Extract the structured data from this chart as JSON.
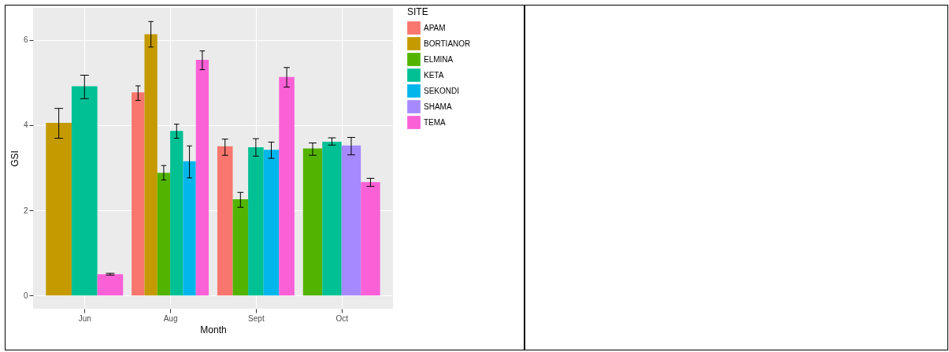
{
  "chart_data": {
    "type": "bar",
    "xlabel": "Month",
    "ylabel": "GSI",
    "legend_title": "SITE",
    "categories": [
      "Jun",
      "Aug",
      "Sept",
      "Oct"
    ],
    "series": [
      {
        "name": "APAM",
        "color": "#f8766d",
        "values": [
          null,
          4.77,
          3.5,
          null
        ],
        "errors": [
          null,
          [
            4.58,
            4.92
          ],
          [
            3.29,
            3.67
          ],
          null
        ]
      },
      {
        "name": "BORTIANOR",
        "color": "#c49a00",
        "values": [
          4.05,
          6.13,
          null,
          null
        ],
        "errors": [
          [
            3.69,
            4.39
          ],
          [
            5.83,
            6.43
          ],
          null,
          null
        ]
      },
      {
        "name": "ELMINA",
        "color": "#53b400",
        "values": [
          null,
          2.88,
          2.26,
          3.45
        ],
        "errors": [
          null,
          [
            2.71,
            3.05
          ],
          [
            2.07,
            2.42
          ],
          [
            3.29,
            3.58
          ]
        ]
      },
      {
        "name": "KETA",
        "color": "#00c094",
        "values": [
          4.91,
          3.86,
          3.48,
          3.61
        ],
        "errors": [
          [
            4.62,
            5.17
          ],
          [
            3.69,
            4.02
          ],
          [
            3.27,
            3.68
          ],
          [
            3.53,
            3.7
          ]
        ]
      },
      {
        "name": "SEKONDI",
        "color": "#00b6eb",
        "values": [
          null,
          3.15,
          3.42,
          null
        ],
        "errors": [
          null,
          [
            2.76,
            3.51
          ],
          [
            3.22,
            3.6
          ],
          null
        ]
      },
      {
        "name": "SHAMA",
        "color": "#a58aff",
        "values": [
          null,
          null,
          null,
          3.52
        ],
        "errors": [
          null,
          null,
          null,
          [
            3.3,
            3.71
          ]
        ]
      },
      {
        "name": "TEMA",
        "color": "#fb61d7",
        "values": [
          0.5,
          5.53,
          5.13,
          2.66
        ],
        "errors": [
          [
            0.48,
            0.52
          ],
          [
            5.3,
            5.74
          ],
          [
            4.89,
            5.35
          ],
          [
            2.56,
            2.75
          ]
        ]
      }
    ],
    "ylim": [
      -0.31,
      6.75
    ],
    "yticks": [
      0,
      2,
      4,
      6
    ],
    "grid": true,
    "legend": "right"
  }
}
